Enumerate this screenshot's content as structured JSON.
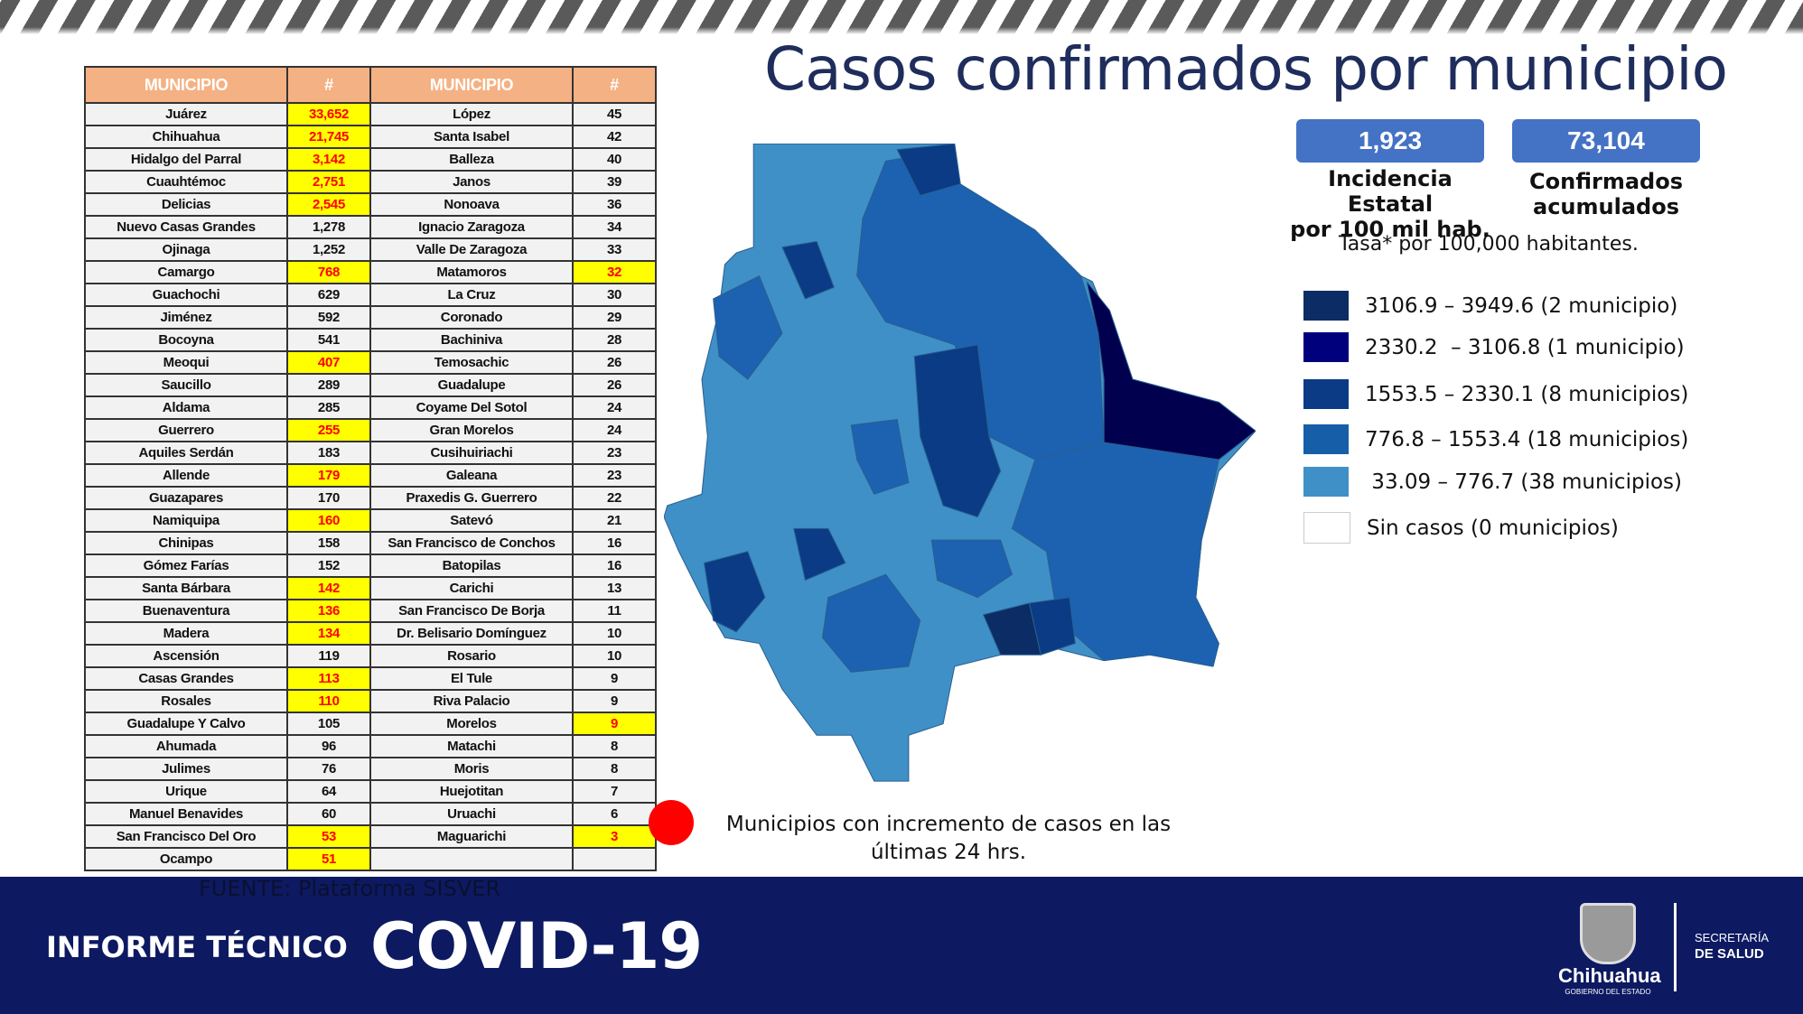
{
  "title": "Casos confirmados por municipio",
  "table": {
    "headers": [
      "MUNICIPIO",
      "#",
      "MUNICIPIO",
      "#"
    ],
    "rows": [
      {
        "l": "Juárez",
        "lv": "33,652",
        "lh": true,
        "r": "López",
        "rv": "45",
        "rh": false
      },
      {
        "l": "Chihuahua",
        "lv": "21,745",
        "lh": true,
        "r": "Santa Isabel",
        "rv": "42",
        "rh": false
      },
      {
        "l": "Hidalgo del Parral",
        "lv": "3,142",
        "lh": true,
        "r": "Balleza",
        "rv": "40",
        "rh": false
      },
      {
        "l": "Cuauhtémoc",
        "lv": "2,751",
        "lh": true,
        "r": "Janos",
        "rv": "39",
        "rh": false
      },
      {
        "l": "Delicias",
        "lv": "2,545",
        "lh": true,
        "r": "Nonoava",
        "rv": "36",
        "rh": false
      },
      {
        "l": "Nuevo Casas Grandes",
        "lv": "1,278",
        "lh": false,
        "r": "Ignacio Zaragoza",
        "rv": "34",
        "rh": false
      },
      {
        "l": "Ojinaga",
        "lv": "1,252",
        "lh": false,
        "r": "Valle De Zaragoza",
        "rv": "33",
        "rh": false
      },
      {
        "l": "Camargo",
        "lv": "768",
        "lh": true,
        "r": "Matamoros",
        "rv": "32",
        "rh": true
      },
      {
        "l": "Guachochi",
        "lv": "629",
        "lh": false,
        "r": "La Cruz",
        "rv": "30",
        "rh": false
      },
      {
        "l": "Jiménez",
        "lv": "592",
        "lh": false,
        "r": "Coronado",
        "rv": "29",
        "rh": false
      },
      {
        "l": "Bocoyna",
        "lv": "541",
        "lh": false,
        "r": "Bachiniva",
        "rv": "28",
        "rh": false
      },
      {
        "l": "Meoqui",
        "lv": "407",
        "lh": true,
        "r": "Temosachic",
        "rv": "26",
        "rh": false
      },
      {
        "l": "Saucillo",
        "lv": "289",
        "lh": false,
        "r": "Guadalupe",
        "rv": "26",
        "rh": false
      },
      {
        "l": "Aldama",
        "lv": "285",
        "lh": false,
        "r": "Coyame Del Sotol",
        "rv": "24",
        "rh": false
      },
      {
        "l": "Guerrero",
        "lv": "255",
        "lh": true,
        "r": "Gran Morelos",
        "rv": "24",
        "rh": false
      },
      {
        "l": "Aquiles Serdán",
        "lv": "183",
        "lh": false,
        "r": "Cusihuiriachi",
        "rv": "23",
        "rh": false
      },
      {
        "l": "Allende",
        "lv": "179",
        "lh": true,
        "r": "Galeana",
        "rv": "23",
        "rh": false
      },
      {
        "l": "Guazapares",
        "lv": "170",
        "lh": false,
        "r": "Praxedis G. Guerrero",
        "rv": "22",
        "rh": false
      },
      {
        "l": "Namiquipa",
        "lv": "160",
        "lh": true,
        "r": "Satevó",
        "rv": "21",
        "rh": false
      },
      {
        "l": "Chinipas",
        "lv": "158",
        "lh": false,
        "r": "San Francisco de Conchos",
        "rv": "16",
        "rh": false
      },
      {
        "l": "Gómez Farías",
        "lv": "152",
        "lh": false,
        "r": "Batopilas",
        "rv": "16",
        "rh": false
      },
      {
        "l": "Santa Bárbara",
        "lv": "142",
        "lh": true,
        "r": "Carichi",
        "rv": "13",
        "rh": false
      },
      {
        "l": "Buenaventura",
        "lv": "136",
        "lh": true,
        "r": "San Francisco De Borja",
        "rv": "11",
        "rh": false
      },
      {
        "l": "Madera",
        "lv": "134",
        "lh": true,
        "r": "Dr. Belisario Domínguez",
        "rv": "10",
        "rh": false
      },
      {
        "l": "Ascensión",
        "lv": "119",
        "lh": false,
        "r": "Rosario",
        "rv": "10",
        "rh": false
      },
      {
        "l": "Casas Grandes",
        "lv": "113",
        "lh": true,
        "r": "El Tule",
        "rv": "9",
        "rh": false
      },
      {
        "l": "Rosales",
        "lv": "110",
        "lh": true,
        "r": "Riva Palacio",
        "rv": "9",
        "rh": false
      },
      {
        "l": "Guadalupe Y Calvo",
        "lv": "105",
        "lh": false,
        "r": "Morelos",
        "rv": "9",
        "rh": true
      },
      {
        "l": "Ahumada",
        "lv": "96",
        "lh": false,
        "r": "Matachi",
        "rv": "8",
        "rh": false
      },
      {
        "l": "Julimes",
        "lv": "76",
        "lh": false,
        "r": "Moris",
        "rv": "8",
        "rh": false
      },
      {
        "l": "Urique",
        "lv": "64",
        "lh": false,
        "r": "Huejotitan",
        "rv": "7",
        "rh": false
      },
      {
        "l": "Manuel Benavides",
        "lv": "60",
        "lh": false,
        "r": "Uruachi",
        "rv": "6",
        "rh": false
      },
      {
        "l": "San Francisco Del Oro",
        "lv": "53",
        "lh": true,
        "r": "Maguarichi",
        "rv": "3",
        "rh": true
      },
      {
        "l": "Ocampo",
        "lv": "51",
        "lh": true,
        "r": "",
        "rv": "",
        "rh": false
      }
    ]
  },
  "kpis": [
    {
      "value": "1,923",
      "label_1": "Incidencia Estatal",
      "label_2": "por 100 mil hab."
    },
    {
      "value": "73,104",
      "label_1": "Confirmados",
      "label_2": "acumulados"
    }
  ],
  "tasa": "Tasa* por 100,000 habitantes.",
  "legend": [
    {
      "label": "3106.9 – 3949.6 (2 municipio)",
      "color": "#0b2c64"
    },
    {
      "label": "2330.2  – 3106.8 (1 municipio)",
      "color": "#00007c"
    },
    {
      "label": "1553.5 – 2330.1 (8 municipios)",
      "color": "#0a3b84"
    },
    {
      "label": "776.8 – 1553.4 (18 municipios)",
      "color": "#175ea8"
    },
    {
      "label": " 33.09 – 776.7 (38 municipios)",
      "color": "#3f90c6"
    },
    {
      "label": "Sin casos (0 municipios)",
      "color": "#ffffff"
    }
  ],
  "note": "Municipios con incremento de casos en las últimas 24 hrs.",
  "note_marker_color": "#ff0000",
  "footer": {
    "source": "FUENTE: Plataforma SISVER",
    "informe": "INFORME TÉCNICO",
    "covid": "COVID-19",
    "logo_name": "Chihuahua",
    "logo_sub": "GOBIERNO DEL ESTADO",
    "sec_1": "SECRETARÍA",
    "sec_2": "DE SALUD"
  }
}
